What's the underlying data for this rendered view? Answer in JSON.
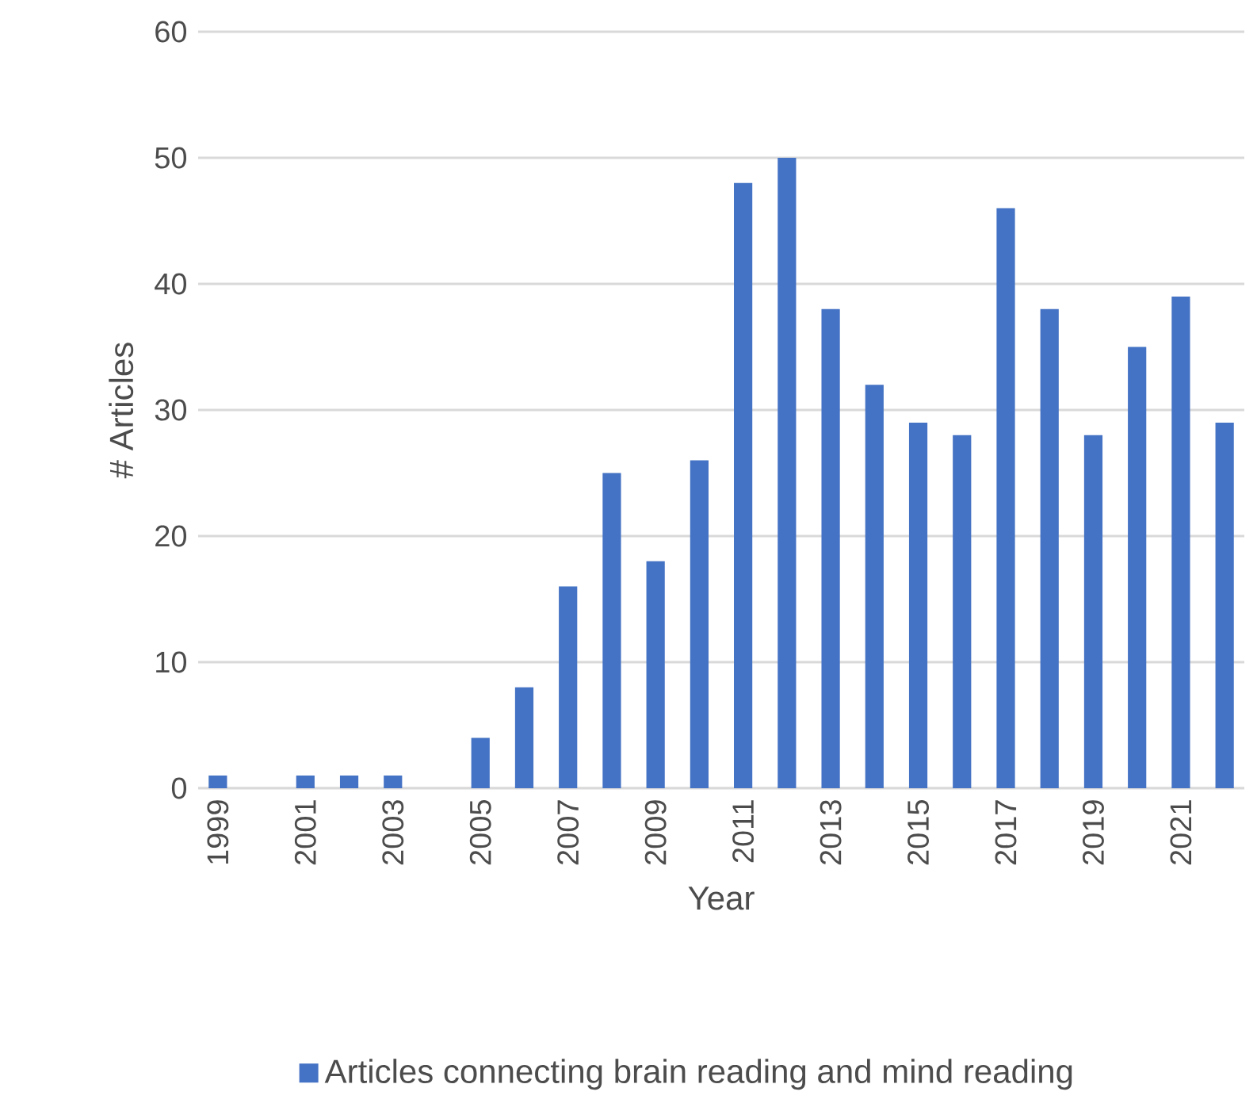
{
  "chart_data": {
    "type": "bar",
    "xlabel": "Year",
    "ylabel": "# Articles",
    "categories": [
      "1999",
      null,
      "2001",
      null,
      "2003",
      null,
      "2005",
      null,
      "2007",
      null,
      "2009",
      null,
      "2011",
      null,
      "2013",
      null,
      "2015",
      null,
      "2017",
      null,
      "2019",
      null,
      "2021",
      null
    ],
    "series": [
      {
        "name": "Articles connecting brain reading and mind reading",
        "color": "#4472c4",
        "values": [
          1,
          0,
          1,
          1,
          1,
          0,
          4,
          8,
          16,
          25,
          18,
          26,
          48,
          50,
          38,
          32,
          29,
          28,
          46,
          38,
          28,
          35,
          39,
          29
        ]
      }
    ],
    "ylim": [
      0,
      60
    ],
    "yticks": [
      0,
      10,
      20,
      30,
      40,
      50,
      60
    ],
    "grid": "y",
    "legend": "bottom"
  }
}
